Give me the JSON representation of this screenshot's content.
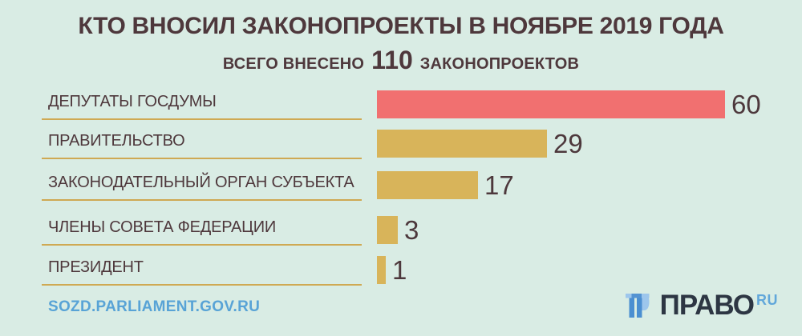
{
  "title": "КТО ВНОСИЛ ЗАКОНОПРОЕКТЫ В НОЯБРЕ 2019 ГОДА",
  "subtitle": {
    "prefix": "ВСЕГО ВНЕСЕНО",
    "count": "110",
    "suffix": "ЗАКОНОПРОЕКТОВ"
  },
  "chart_data": {
    "type": "bar",
    "orientation": "horizontal",
    "title": "КТО ВНОСИЛ ЗАКОНОПРОЕКТЫ В НОЯБРЕ 2019 ГОДА",
    "subtitle": "ВСЕГО ВНЕСЕНО 110 ЗАКОНОПРОЕКТОВ",
    "total_bills": 110,
    "categories": [
      "ДЕПУТАТЫ ГОСДУМЫ",
      "ПРАВИТЕЛЬСТВО",
      "ЗАКОНОДАТЕЛЬНЫЙ ОРГАН СУБЪЕКТА",
      "ЧЛЕНЫ СОВЕТА ФЕДЕРАЦИИ",
      "ПРЕЗИДЕНТ"
    ],
    "values": [
      60,
      29,
      17,
      3,
      1
    ],
    "bar_colors": [
      "#f17070",
      "#d8b45a",
      "#d8b45a",
      "#d8b45a",
      "#d8b45a"
    ],
    "xlim": [
      0,
      60
    ],
    "value_labels": true,
    "legend": false,
    "grid": false
  },
  "footer": {
    "source_link": "SOZD.PARLIAMENT.GOV.RU",
    "logo_text": "ПРАВО",
    "logo_suffix": "RU"
  },
  "colors": {
    "background": "#d9ece4",
    "text_dark": "#4e383c",
    "accent_red": "#f17070",
    "accent_gold": "#d8b45a",
    "divider_gold": "#cfa953",
    "link_blue": "#58a3d6",
    "logo_navy": "#2d3643",
    "logo_blue": "#4b8fd1",
    "logo_light_blue": "#9dc6ec"
  }
}
